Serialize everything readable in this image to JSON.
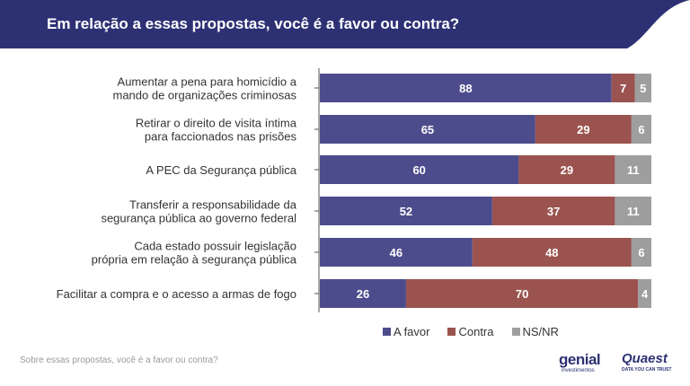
{
  "header": {
    "title": "Em relação a essas propostas, você é a favor ou contra?"
  },
  "chart_data": {
    "type": "bar",
    "stacked": true,
    "orientation": "horizontal",
    "categories": [
      [
        "Aumentar a pena para homicídio a",
        "mando de organizações criminosas"
      ],
      [
        "Retirar o direito de visita íntima",
        "para faccionados nas prisões"
      ],
      [
        "A PEC da Segurança pública"
      ],
      [
        "Transferir a responsabilidade da",
        "segurança pública ao governo federal"
      ],
      [
        "Cada estado possuir legislação",
        "própria em relação à segurança pública"
      ],
      [
        "Facilitar a compra e o acesso a armas de fogo"
      ]
    ],
    "series": [
      {
        "name": "A favor",
        "color": "#4c4c8c",
        "values": [
          88,
          65,
          60,
          52,
          46,
          26
        ]
      },
      {
        "name": "Contra",
        "color": "#9b534f",
        "values": [
          7,
          29,
          29,
          37,
          48,
          70
        ]
      },
      {
        "name": "NS/NR",
        "color": "#9e9e9e",
        "values": [
          5,
          6,
          11,
          11,
          6,
          4
        ]
      }
    ],
    "xlim": [
      0,
      100
    ],
    "legend_position": "bottom",
    "grid": false
  },
  "footer": {
    "note": "Sobre essas propostas, você é a favor ou contra?",
    "logo_genial": "genial",
    "logo_genial_sub": "investimentos",
    "logo_quaest": "Quaest",
    "logo_quaest_sub": "DATA YOU CAN TRUST"
  }
}
